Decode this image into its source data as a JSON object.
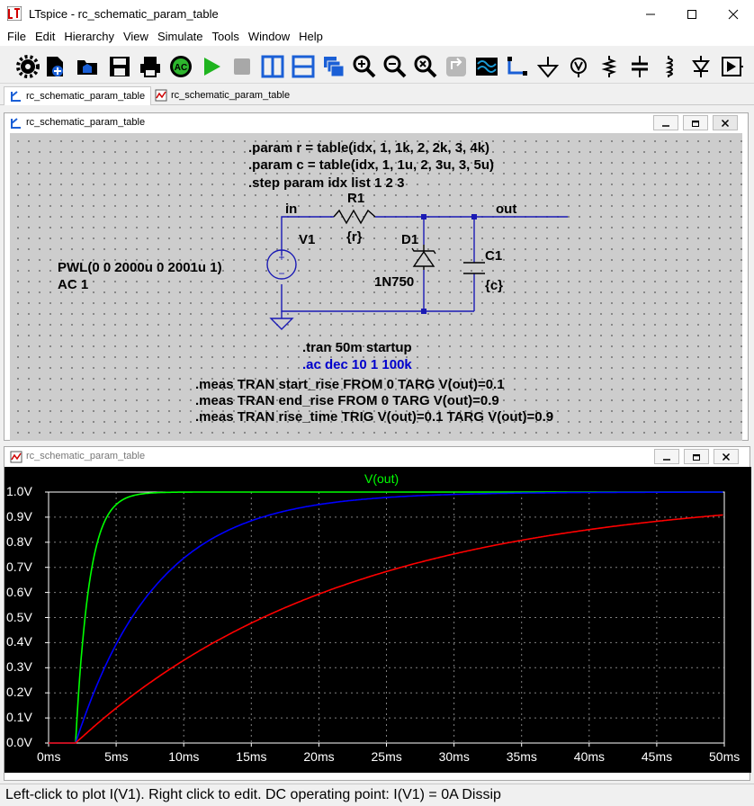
{
  "window": {
    "title": "LTspice - rc_schematic_param_table",
    "app_icon": "ltspice-logo-icon"
  },
  "menu": [
    "File",
    "Edit",
    "Hierarchy",
    "View",
    "Simulate",
    "Tools",
    "Window",
    "Help"
  ],
  "toolbar": {
    "icons": [
      "settings-icon",
      "new-schematic-icon",
      "open-icon",
      "save-icon",
      "print-icon",
      "ac-analysis-icon",
      "run-icon",
      "halt-icon",
      "tile-vertical-icon",
      "tile-horizontal-icon",
      "cascade-icon",
      "zoom-in-icon",
      "zoom-out-icon",
      "zoom-fit-icon",
      "pan-icon",
      "waveform-icon",
      "wire-icon",
      "ground-icon",
      "label-net-icon",
      "resistor-icon",
      "capacitor-icon",
      "inductor-icon",
      "diode-icon",
      "component-icon"
    ]
  },
  "tabs": [
    {
      "label": "rc_schematic_param_table",
      "icon": "schematic-tab-icon"
    },
    {
      "label": "rc_schematic_param_table",
      "icon": "waveform-tab-icon"
    }
  ],
  "schematic": {
    "title": "rc_schematic_param_table",
    "directives": [
      ".param r = table(idx, 1, 1k, 2, 2k, 3, 4k)",
      ".param c = table(idx, 1, 1u, 2, 3u, 3, 5u)",
      ".step param idx list 1 2 3"
    ],
    "net_in": "in",
    "net_out": "out",
    "r1_name": "R1",
    "r1_value": "{r}",
    "v1_name": "V1",
    "v1_value_line1": "PWL(0 0 2000u 0 2001u 1)",
    "v1_value_line2": "AC 1",
    "d1_name": "D1",
    "d1_value": "1N750",
    "c1_name": "C1",
    "c1_value": "{c}",
    "tran": ".tran 50m startup",
    "ac": ".ac dec 10 1 100k",
    "meas": [
      ".meas TRAN start_rise FROM 0 TARG V(out)=0.1",
      ".meas TRAN end_rise FROM 0 TARG V(out)=0.9",
      ".meas TRAN rise_time TRIG V(out)=0.1 TARG V(out)=0.9"
    ]
  },
  "plot": {
    "title": "rc_schematic_param_table",
    "colors": {
      "bg": "#000000",
      "axis": "#ffffff"
    }
  },
  "chart_data": {
    "type": "line",
    "title": "V(out)",
    "xlabel": "",
    "ylabel": "",
    "xlim": [
      0,
      50
    ],
    "ylim": [
      0,
      1.0
    ],
    "x_ticks": [
      "0ms",
      "5ms",
      "10ms",
      "15ms",
      "20ms",
      "25ms",
      "30ms",
      "35ms",
      "40ms",
      "45ms",
      "50ms"
    ],
    "y_ticks": [
      "0.0V",
      "0.1V",
      "0.2V",
      "0.3V",
      "0.4V",
      "0.5V",
      "0.6V",
      "0.7V",
      "0.8V",
      "0.9V",
      "1.0V"
    ],
    "series": [
      {
        "color": "#00ff00",
        "tau_ms": 1.0,
        "t0_ms": 2.0
      },
      {
        "color": "#0000ff",
        "tau_ms": 6.0,
        "t0_ms": 2.0
      },
      {
        "color": "#ff0000",
        "tau_ms": 20.0,
        "t0_ms": 2.0
      }
    ]
  },
  "status": {
    "text": "Left-click to plot I(V1).  Right click to edit.  DC operating point: I(V1) = 0A   Dissip"
  }
}
